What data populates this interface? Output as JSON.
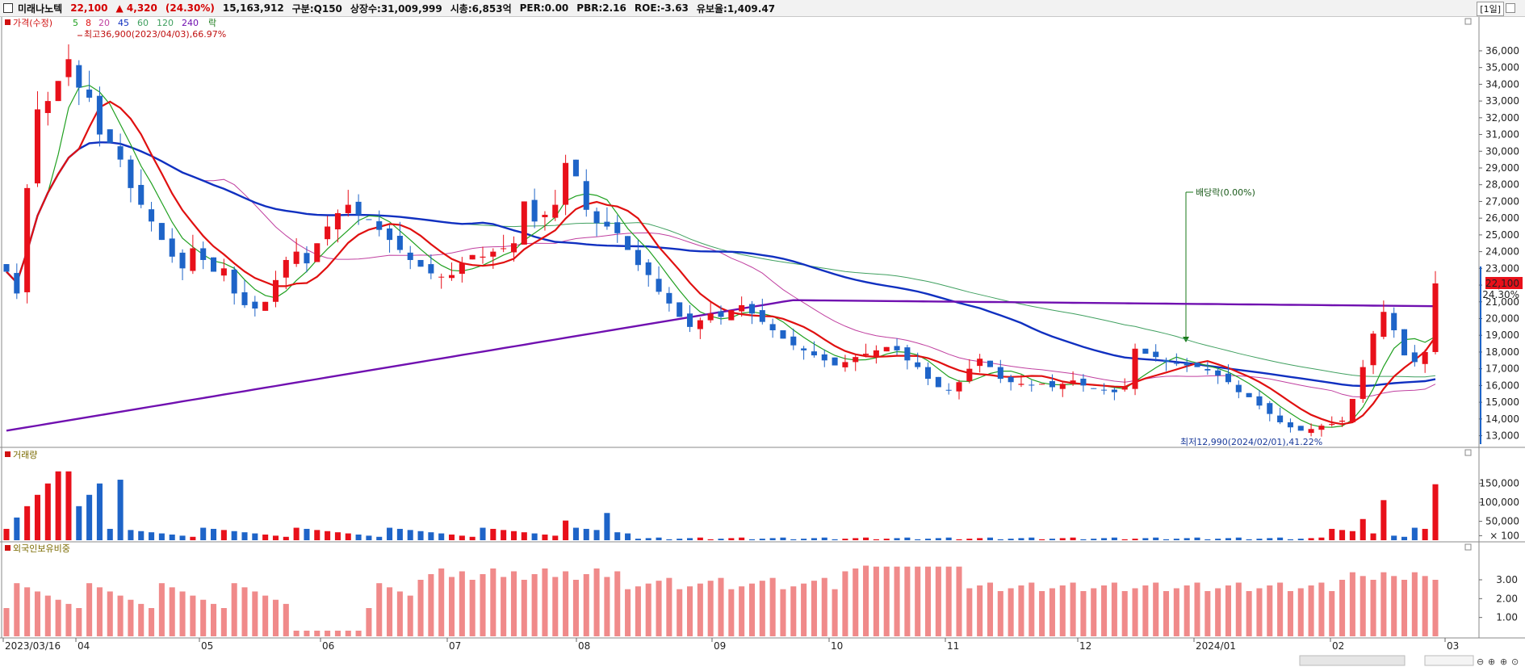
{
  "header": {
    "name": "미래나노텍",
    "price": "22,100",
    "change": "▲ 4,320",
    "change_pct": "(24.30%)",
    "volume": "15,163,912",
    "market": "구분:Q150",
    "shares": "상장수:31,009,999",
    "cap": "시총:6,853억",
    "per": "PER:0.00",
    "pbr": "PBR:2.16",
    "roe": "ROE:-3.63",
    "reserve": "유보율:1,409.47",
    "period": "[1일]"
  },
  "legend": {
    "price_label": "가격(수정)",
    "ma5": "5",
    "ma8": "8",
    "ma20": "20",
    "ma45": "45",
    "ma60": "60",
    "ma120": "120",
    "ma240": "240",
    "ex_label": "락",
    "high_note": "최고36,900(2023/04/03),66.97%",
    "low_note": "최저12,990(2024/02/01),41.22%",
    "dividend_note": "배당락(0.00%)",
    "volume_label": "거래량",
    "foreign_label": "외국인보유비중"
  },
  "colors": {
    "up": "#e8101a",
    "down": "#1e64c8",
    "ma5": "#20a020",
    "ma8": "#e01010",
    "ma20": "#c040a0",
    "ma45": "#1030c0",
    "ma60": "#40a060",
    "ma240": "#7010b0",
    "foreign": "#f08a8a"
  },
  "chart_data": [
    {
      "type": "candlestick",
      "title": "가격(수정)",
      "y_range": [
        12400,
        37300
      ],
      "y_ticks": [
        "36,000",
        "35,000",
        "34,000",
        "33,000",
        "32,000",
        "31,000",
        "30,000",
        "29,000",
        "28,000",
        "27,000",
        "26,000",
        "25,000",
        "24,000",
        "23,000",
        "22,000",
        "21,000",
        "20,000",
        "19,000",
        "18,000",
        "17,000",
        "16,000",
        "15,000",
        "14,000",
        "13,000"
      ],
      "x_labels": [
        "2023/03/16",
        "04",
        "05",
        "06",
        "07",
        "08",
        "09",
        "10",
        "11",
        "12",
        "2024/01",
        "02",
        "03"
      ],
      "last_price": "22,100",
      "last_pct": "24.30%",
      "high": 36900,
      "low": 12990,
      "closes": [
        22800,
        21500,
        27800,
        32500,
        33000,
        34200,
        35500,
        33800,
        33200,
        31000,
        30500,
        29500,
        27800,
        26800,
        25800,
        24700,
        23700,
        23000,
        24200,
        23500,
        22800,
        23000,
        21500,
        20800,
        20600,
        21000,
        22300,
        23500,
        24000,
        23300,
        24500,
        25500,
        26300,
        26800,
        26200,
        25900,
        25300,
        24700,
        24100,
        23500,
        23100,
        22700,
        22500,
        22600,
        23300,
        23800,
        23700,
        24000,
        24200,
        24500,
        27000,
        25800,
        26200,
        26800,
        29300,
        28500,
        26500,
        25700,
        25500,
        25100,
        24100,
        23200,
        22600,
        21600,
        20900,
        20100,
        19500,
        19900,
        20300,
        20100,
        20500,
        20800,
        20300,
        19800,
        19300,
        18800,
        18400,
        18100,
        17800,
        17500,
        17200,
        17400,
        17700,
        17900,
        18100,
        18300,
        18100,
        17500,
        17100,
        16400,
        15900,
        15700,
        16200,
        17000,
        17600,
        17100,
        16400,
        16200,
        16100,
        16000,
        16100,
        15900,
        16100,
        16300,
        16000,
        15800,
        15700,
        15600,
        15900,
        18200,
        17900,
        17700,
        17400,
        17300,
        17200,
        17100,
        16900,
        16600,
        16200,
        15600,
        15300,
        14800,
        14300,
        13800,
        13500,
        13300,
        13400,
        13600,
        13700,
        13900,
        15200,
        17100,
        19100,
        20400,
        19300,
        17800,
        17400,
        18000,
        22100
      ]
    },
    {
      "type": "bar",
      "title": "거래량",
      "y_ticks": [
        "150,000",
        "100,000",
        "50,000",
        "× 100"
      ],
      "y_range": [
        0,
        190000
      ]
    },
    {
      "type": "bar",
      "title": "외국인보유비중",
      "y_ticks": [
        "3.00",
        "2.00",
        "1.00"
      ],
      "y_range": [
        0,
        4.2
      ]
    }
  ]
}
